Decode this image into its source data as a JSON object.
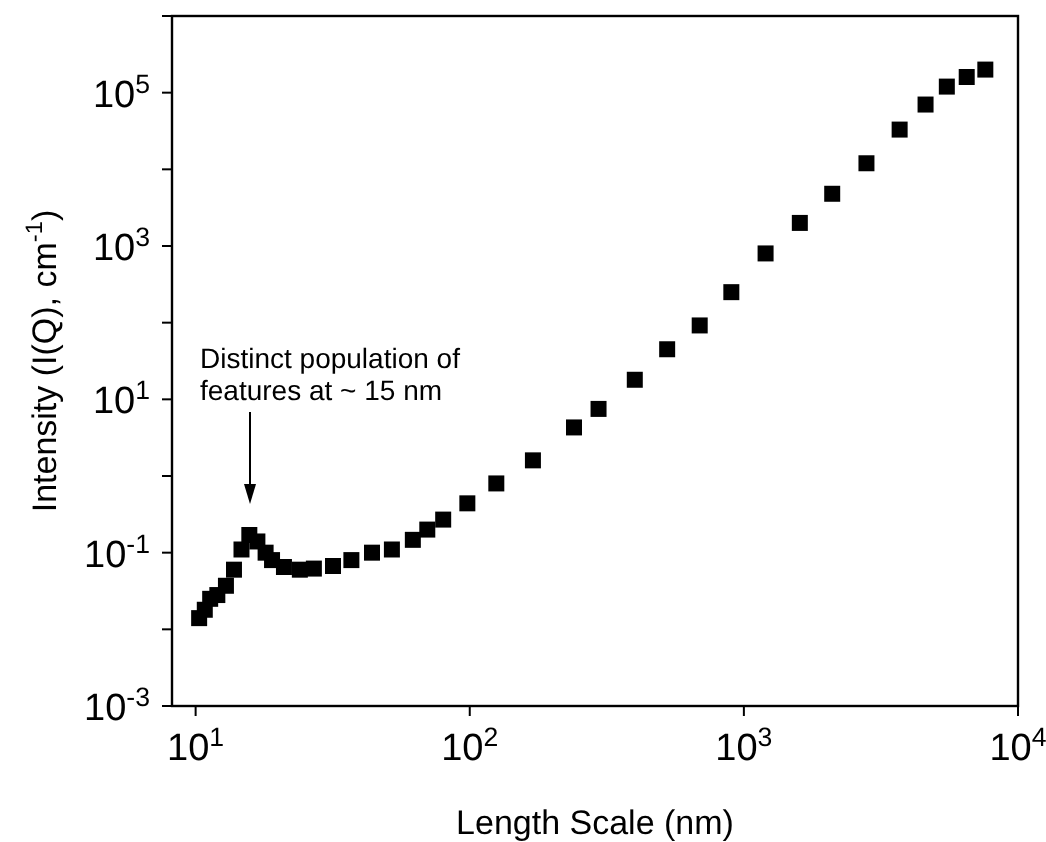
{
  "chart_data": {
    "type": "scatter",
    "xlabel": "Length Scale (nm)",
    "ylabel": "Intensity (I(Q), cm$^{-1}$)",
    "log": "xy",
    "marker": "square",
    "xlim": [
      8.2,
      10000
    ],
    "xticks": [
      {
        "value": 10,
        "label": "10$^{1}$"
      },
      {
        "value": 100,
        "label": "10$^{2}$"
      },
      {
        "value": 1000,
        "label": "10$^{3}$"
      },
      {
        "value": 10000,
        "label": "10$^{4}$"
      }
    ],
    "ylim": [
      0.001,
      1000000
    ],
    "yticks": [
      {
        "value": 0.001,
        "label": "10$^{-3}$"
      },
      {
        "value": 0.01,
        "label": null
      },
      {
        "value": 0.1,
        "label": "10$^{-1}$"
      },
      {
        "value": 1,
        "label": null
      },
      {
        "value": 10,
        "label": "10$^{1}$"
      },
      {
        "value": 100,
        "label": null
      },
      {
        "value": 1000,
        "label": "10$^{3}$"
      },
      {
        "value": 10000,
        "label": null
      },
      {
        "value": 100000,
        "label": "10$^{5}$"
      },
      {
        "value": 1000000,
        "label": null
      }
    ],
    "annotations": [
      "Distinct population of\nfeatures at ~ 15 nm"
    ],
    "series": [
      {
        "color": "#000000",
        "x": [
          10.3,
          10.8,
          11.3,
          12,
          12.9,
          13.8,
          14.7,
          15.7,
          16.8,
          18,
          19,
          21,
          24,
          27,
          31.7,
          37,
          44,
          52,
          62,
          70,
          80,
          98,
          125,
          170,
          240,
          295,
          400,
          525,
          690,
          900,
          1200,
          1600,
          2100,
          2800,
          3700,
          4600,
          5500,
          6500,
          7600
        ],
        "values": [
          0.014,
          0.018,
          0.025,
          0.028,
          0.037,
          0.06,
          0.11,
          0.17,
          0.14,
          0.1,
          0.08,
          0.065,
          0.06,
          0.062,
          0.067,
          0.08,
          0.1,
          0.11,
          0.147,
          0.2,
          0.27,
          0.44,
          0.8,
          1.6,
          4.3,
          7.5,
          18,
          45,
          92,
          250,
          800,
          2000,
          4800,
          12000,
          33000,
          70000,
          120000,
          160000,
          200000
        ]
      }
    ]
  }
}
